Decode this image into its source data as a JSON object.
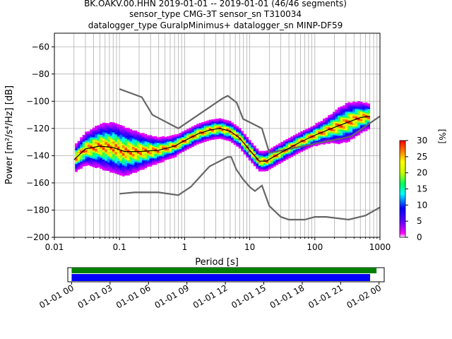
{
  "title_lines": [
    "BK.OAKV.00.HHN   2019-01-01 -- 2019-01-01  (46/46 segments)",
    "sensor_type CMG-3T sensor_sn T310034",
    "datalogger_type GuralpMinimus+ datalogger_sn MINP-DF59"
  ],
  "chart_data": {
    "type": "heatmap",
    "xlabel": "Period [s]",
    "ylabel": "Power [m²/s⁴/Hz] [dB]",
    "x_scale": "log",
    "xlim": [
      0.01,
      1000
    ],
    "ylim": [
      -200,
      -50
    ],
    "x_ticks": [
      0.01,
      0.1,
      1,
      10,
      100,
      1000
    ],
    "x_tick_labels": [
      "0.01",
      "0.1",
      "1",
      "10",
      "100",
      "1000"
    ],
    "y_ticks": [
      -200,
      -180,
      -160,
      -140,
      -120,
      -100,
      -80,
      -60
    ],
    "y_tick_labels": [
      "−200",
      "−180",
      "−160",
      "−140",
      "−120",
      "−100",
      "−80",
      "−60"
    ],
    "grid": true,
    "colorbar": {
      "label": "[%]",
      "range": [
        0,
        30
      ],
      "ticks": [
        0,
        5,
        10,
        15,
        20,
        25,
        30
      ],
      "tick_labels": [
        "0",
        "5",
        "10",
        "15",
        "20",
        "25",
        "30"
      ]
    },
    "mode_curve": [
      [
        0.02,
        -143
      ],
      [
        0.03,
        -135
      ],
      [
        0.05,
        -133
      ],
      [
        0.08,
        -134
      ],
      [
        0.12,
        -137
      ],
      [
        0.2,
        -137
      ],
      [
        0.4,
        -136
      ],
      [
        0.7,
        -133
      ],
      [
        1,
        -129
      ],
      [
        1.6,
        -124
      ],
      [
        2.5,
        -121
      ],
      [
        3.5,
        -120
      ],
      [
        5,
        -122
      ],
      [
        7,
        -127
      ],
      [
        10,
        -136
      ],
      [
        14,
        -144
      ],
      [
        18,
        -144
      ],
      [
        25,
        -140
      ],
      [
        35,
        -136
      ],
      [
        60,
        -130
      ],
      [
        100,
        -125
      ],
      [
        180,
        -120
      ],
      [
        300,
        -116
      ],
      [
        500,
        -112
      ],
      [
        700,
        -111
      ]
    ],
    "nlnm": [
      [
        0.1,
        -168
      ],
      [
        0.17,
        -167
      ],
      [
        0.4,
        -167
      ],
      [
        0.8,
        -169
      ],
      [
        1.24,
        -163
      ],
      [
        2.4,
        -148
      ],
      [
        3.8,
        -143
      ],
      [
        4.6,
        -141
      ],
      [
        5.2,
        -141
      ],
      [
        6.2,
        -150
      ],
      [
        7.8,
        -157
      ],
      [
        10,
        -163
      ],
      [
        12,
        -166
      ],
      [
        15.4,
        -162
      ],
      [
        20,
        -177
      ],
      [
        30,
        -185
      ],
      [
        40,
        -187
      ],
      [
        70,
        -187
      ],
      [
        100,
        -185
      ],
      [
        150,
        -185
      ],
      [
        330,
        -187
      ],
      [
        600,
        -184
      ],
      [
        1000,
        -178
      ]
    ],
    "nhnm": [
      [
        0.1,
        -91
      ],
      [
        0.22,
        -97
      ],
      [
        0.32,
        -110
      ],
      [
        0.8,
        -120
      ],
      [
        3.8,
        -98
      ],
      [
        4.6,
        -96
      ],
      [
        6.3,
        -101
      ],
      [
        7.9,
        -113
      ],
      [
        15.4,
        -120
      ],
      [
        20,
        -138
      ],
      [
        354.8,
        -126
      ],
      [
        1000,
        -111
      ]
    ]
  },
  "timeline": {
    "x_tick_labels": [
      "01-01 00",
      "01-01 03",
      "01-01 06",
      "01-01 09",
      "01-01 12",
      "01-01 15",
      "01-01 18",
      "01-01 21",
      "01-02 00"
    ],
    "range_hours": [
      -0.3,
      24.4
    ],
    "data_bar_hours": [
      0,
      23.8
    ],
    "gap_bar_hours": [
      0,
      23.3
    ],
    "colors": {
      "data": "#008000",
      "segments": "#0000ff"
    }
  }
}
